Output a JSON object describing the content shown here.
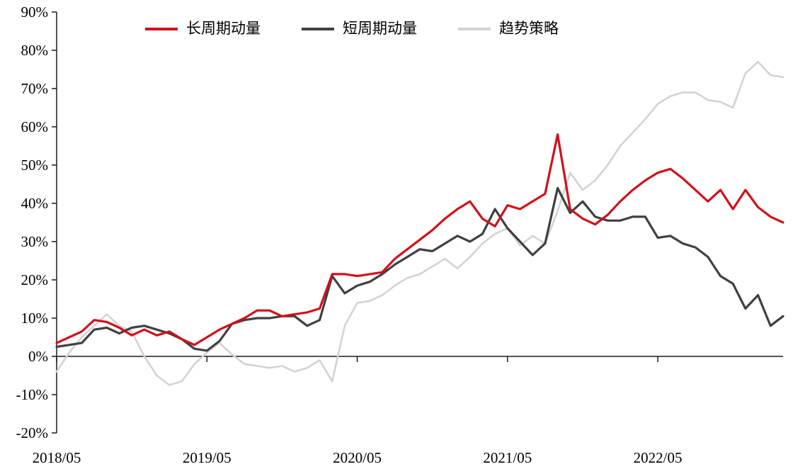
{
  "page": {
    "background": "#ffffff"
  },
  "chart_data": {
    "type": "line",
    "title": "",
    "xlabel": "",
    "ylabel": "",
    "grid": false,
    "legend_position": "top",
    "axis_color": "#1a1a1a",
    "ylim": [
      -20,
      90
    ],
    "ytick_step": 10,
    "ytick_labels": [
      "-20%",
      "-10%",
      "0%",
      "10%",
      "20%",
      "30%",
      "40%",
      "50%",
      "60%",
      "70%",
      "80%",
      "90%"
    ],
    "xticks": [
      {
        "index": 0,
        "label": "2018/05"
      },
      {
        "index": 12,
        "label": "2019/05"
      },
      {
        "index": 24,
        "label": "2020/05"
      },
      {
        "index": 36,
        "label": "2021/05"
      },
      {
        "index": 48,
        "label": "2022/05"
      }
    ],
    "x": [
      "2018/05",
      "2018/06",
      "2018/07",
      "2018/08",
      "2018/09",
      "2018/10",
      "2018/11",
      "2018/12",
      "2019/01",
      "2019/02",
      "2019/03",
      "2019/04",
      "2019/05",
      "2019/06",
      "2019/07",
      "2019/08",
      "2019/09",
      "2019/10",
      "2019/11",
      "2019/12",
      "2020/01",
      "2020/02",
      "2020/03",
      "2020/04",
      "2020/05",
      "2020/06",
      "2020/07",
      "2020/08",
      "2020/09",
      "2020/10",
      "2020/11",
      "2020/12",
      "2021/01",
      "2021/02",
      "2021/03",
      "2021/04",
      "2021/05",
      "2021/06",
      "2021/07",
      "2021/08",
      "2021/09",
      "2021/10",
      "2021/11",
      "2021/12",
      "2022/01",
      "2022/02",
      "2022/03",
      "2022/04",
      "2022/05",
      "2022/06",
      "2022/07",
      "2022/08",
      "2022/09",
      "2022/10",
      "2022/11",
      "2022/12",
      "2023/01",
      "2023/02",
      "2023/03"
    ],
    "series": [
      {
        "name": "长周期动量",
        "color": "#d0111b",
        "stroke_width": 3.2,
        "values": [
          3.5,
          5,
          6.5,
          9.5,
          9,
          7.5,
          5.5,
          7,
          5.5,
          6.5,
          4.5,
          3,
          5,
          7,
          8.5,
          10,
          12,
          12,
          10.5,
          11,
          11.5,
          12.5,
          21.5,
          21.5,
          21,
          21.5,
          22,
          25.5,
          28,
          30.5,
          33,
          36,
          38.5,
          40.5,
          36,
          34,
          39.5,
          38.5,
          40.5,
          42.5,
          58,
          38.5,
          36,
          34.5,
          37,
          40.5,
          43.5,
          46,
          48,
          49,
          46.5,
          43.5,
          40.5,
          43.5,
          38.5,
          43.5,
          39,
          36.5,
          35
        ]
      },
      {
        "name": "短周期动量",
        "color": "#404040",
        "stroke_width": 3.2,
        "values": [
          2.5,
          3,
          3.5,
          7,
          7.5,
          6,
          7.5,
          8,
          7,
          6,
          4.5,
          2,
          1.5,
          4,
          8.5,
          9.5,
          10,
          10,
          10.5,
          10.5,
          8,
          9.5,
          21,
          16.5,
          18.5,
          19.5,
          21.5,
          24,
          26,
          28,
          27.5,
          29.5,
          31.5,
          30,
          32,
          38.5,
          33.5,
          30,
          26.5,
          29.5,
          44,
          37.5,
          40.5,
          36.5,
          35.5,
          35.5,
          36.5,
          36.5,
          31,
          31.5,
          29.5,
          28.5,
          26,
          21,
          19,
          12.5,
          16,
          8,
          10.5
        ]
      },
      {
        "name": "趋势策略",
        "color": "#d3d3d3",
        "stroke_width": 2.6,
        "values": [
          -4,
          1,
          5,
          8,
          11,
          8,
          6.5,
          0,
          -5,
          -7.5,
          -6.5,
          -2,
          1,
          3.5,
          0.5,
          -2,
          -2.5,
          -3,
          -2.5,
          -4,
          -3,
          -1,
          -6.5,
          8,
          14,
          14.5,
          16,
          18.5,
          20.5,
          21.5,
          23.5,
          25.5,
          23,
          26,
          29.5,
          32,
          33.5,
          29,
          31.5,
          29.5,
          38,
          48,
          43.5,
          46,
          50,
          55,
          58.5,
          62,
          66,
          68,
          69,
          69,
          67,
          66.5,
          65,
          74,
          77,
          73.5,
          73
        ]
      }
    ]
  }
}
